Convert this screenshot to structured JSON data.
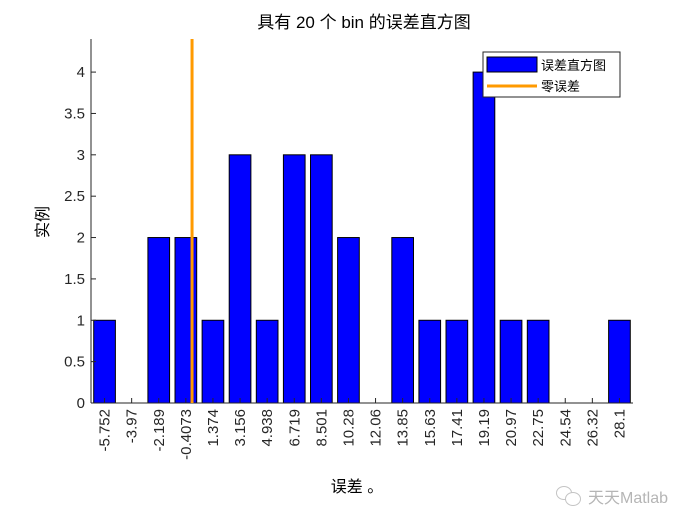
{
  "chart_data": {
    "type": "bar",
    "title": "具有 20 个 bin 的误差直方图",
    "xlabel": "误差 。",
    "ylabel": "实例",
    "categories": [
      "-5.752",
      "-3.97",
      "-2.189",
      "-0.4073",
      "1.374",
      "3.156",
      "4.938",
      "6.719",
      "8.501",
      "10.28",
      "12.06",
      "13.85",
      "15.63",
      "17.41",
      "19.19",
      "20.97",
      "22.75",
      "24.54",
      "26.32",
      "28.1"
    ],
    "values": [
      1,
      0,
      2,
      2,
      1,
      3,
      1,
      3,
      3,
      2,
      0,
      2,
      1,
      1,
      4,
      1,
      1,
      0,
      0,
      1
    ],
    "ylim": [
      0,
      4.4
    ],
    "yticks": [
      0,
      0.5,
      1,
      1.5,
      2,
      2.5,
      3,
      3.5,
      4
    ],
    "ytick_labels": [
      "0",
      "0.5",
      "1",
      "1.5",
      "2",
      "2.5",
      "3",
      "3.5",
      "4"
    ],
    "zero_error_line": {
      "x_position": 0,
      "between_categories": [
        "-0.4073",
        "1.374"
      ],
      "color": "#ff9a00"
    },
    "bar_color": "#0000ff",
    "grid": false,
    "legend": {
      "position": "northeast",
      "entries": [
        {
          "label": "误差直方图",
          "type": "bar",
          "color": "#0000ff"
        },
        {
          "label": "零误差",
          "type": "line",
          "color": "#ff9a00"
        }
      ]
    }
  },
  "watermark": {
    "text": "天天Matlab",
    "icon": "wechat-icon"
  }
}
